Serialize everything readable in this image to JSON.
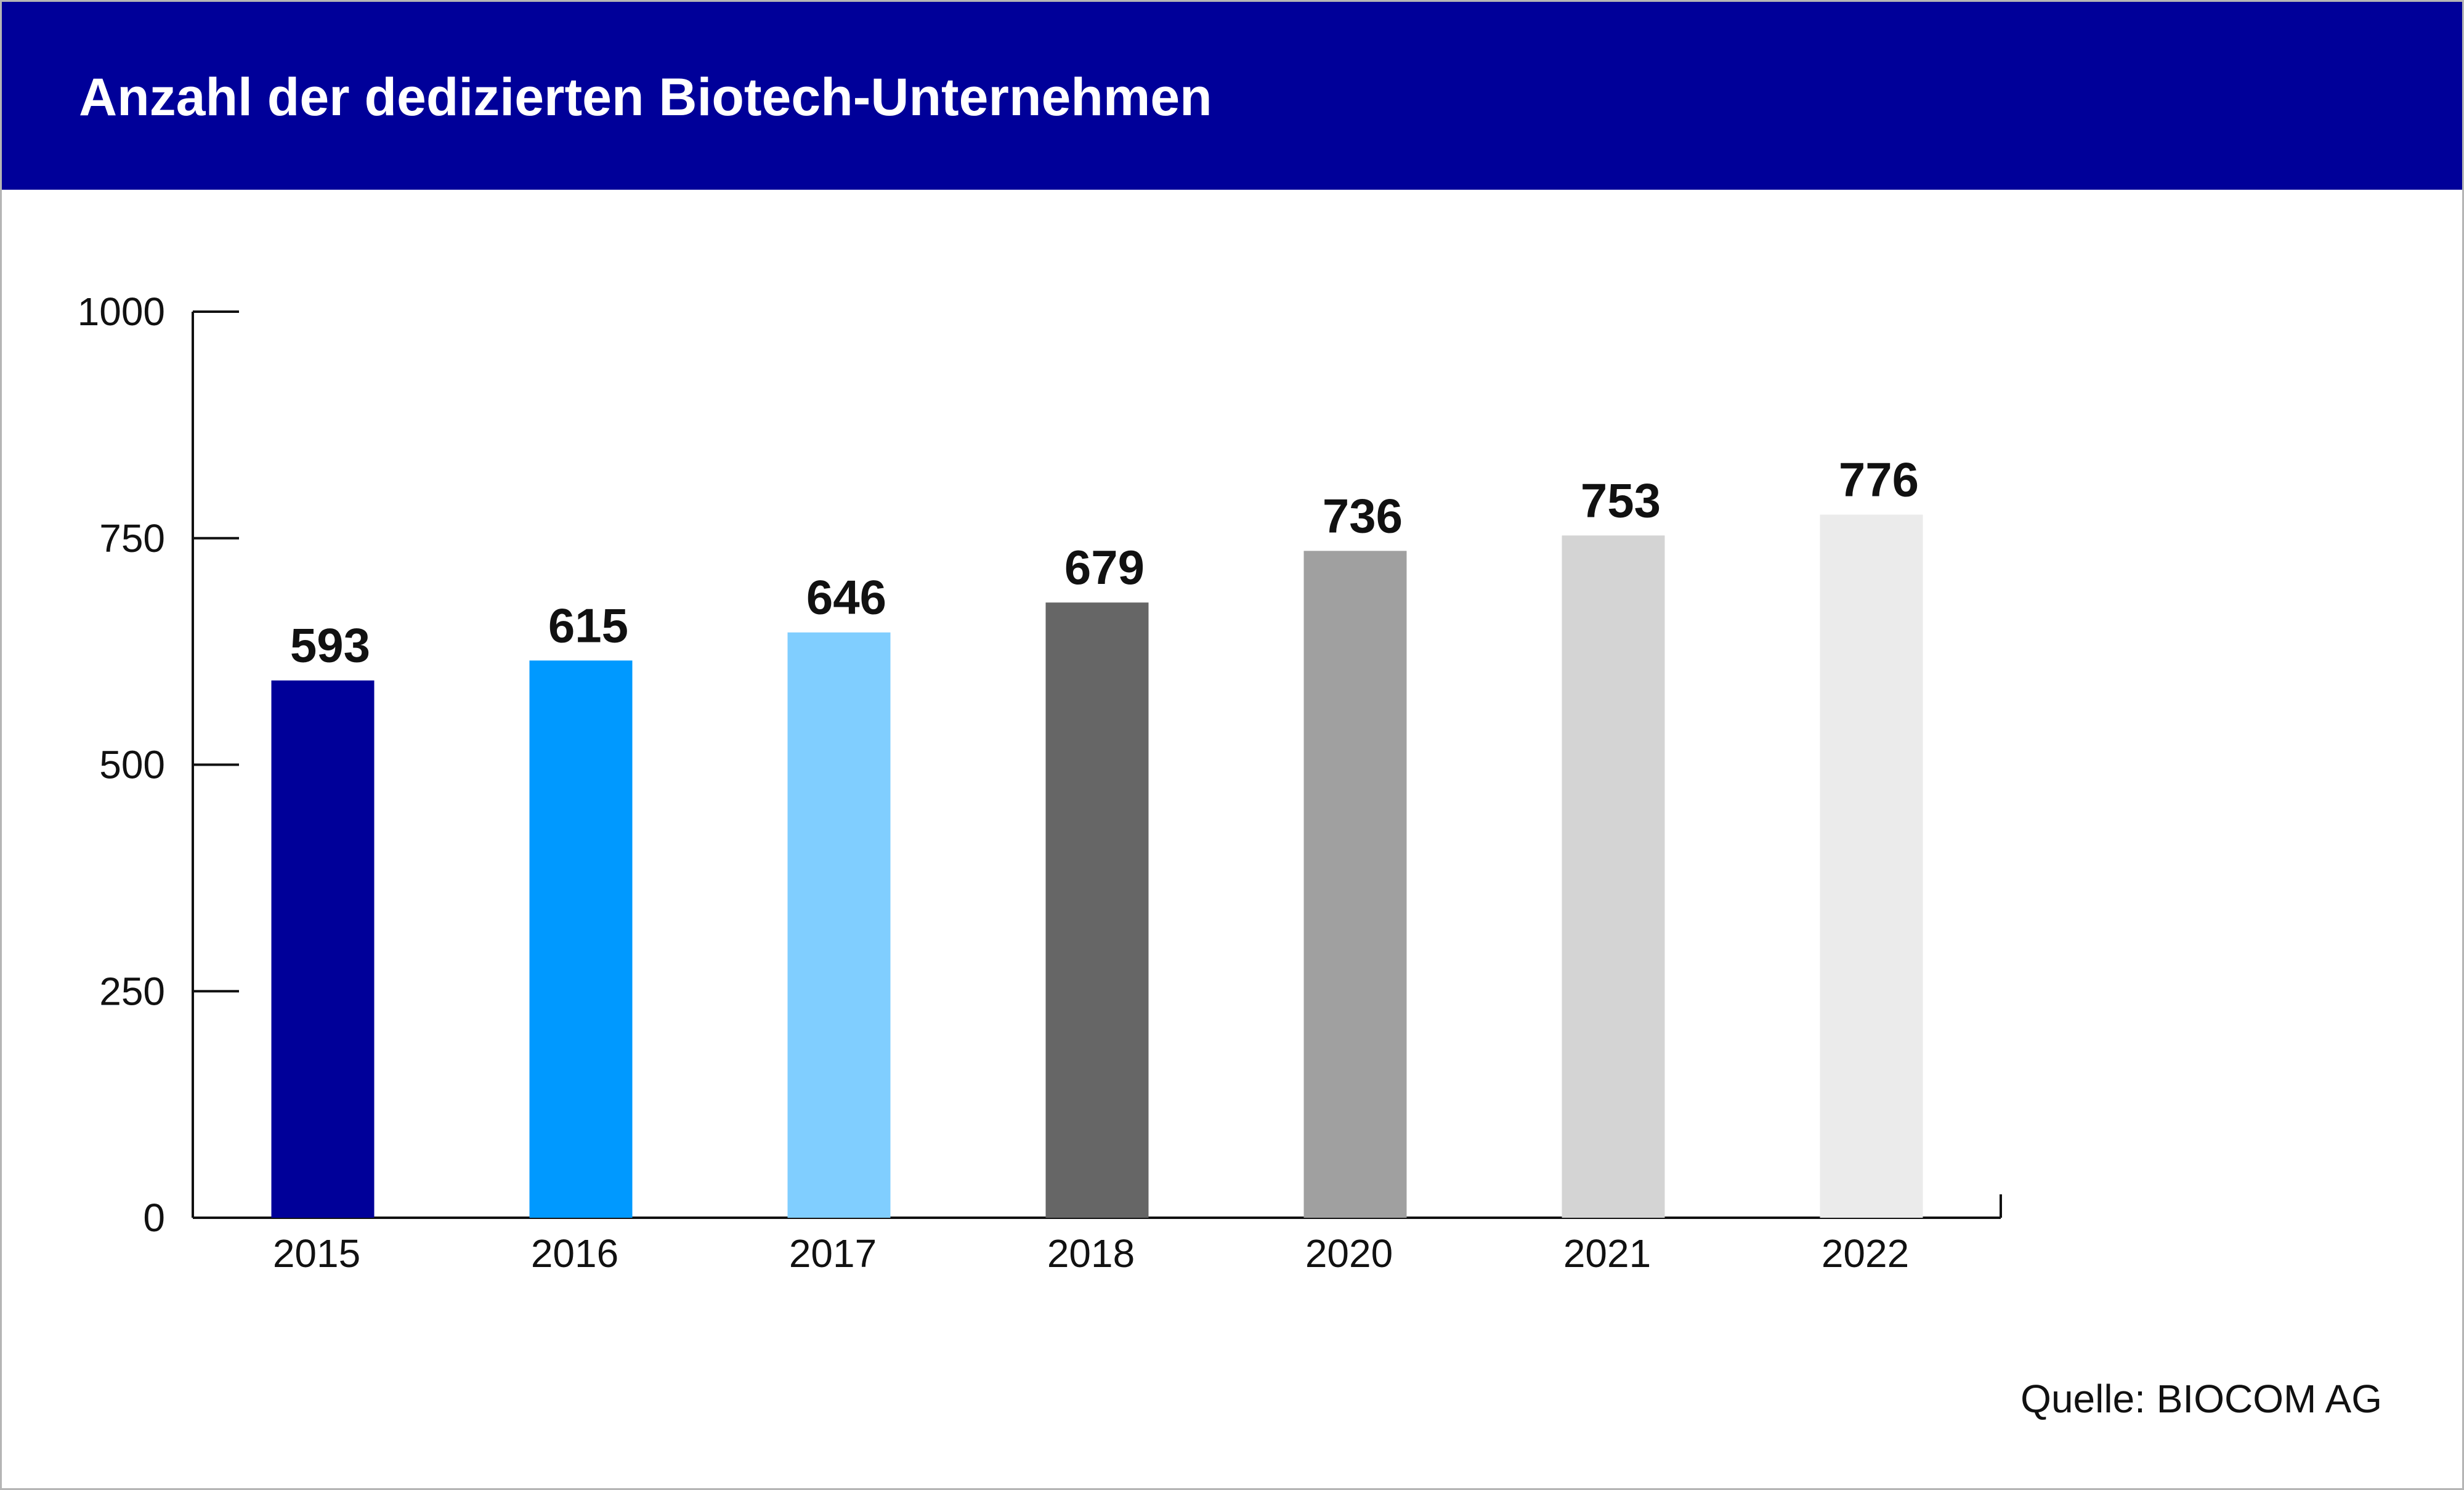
{
  "chart_data": {
    "type": "bar",
    "title": "Anzahl der dedizierten Biotech-Unternehmen",
    "categories": [
      "2015",
      "2016",
      "2017",
      "2018",
      "2020",
      "2021",
      "2022"
    ],
    "values": [
      593,
      615,
      646,
      679,
      736,
      753,
      776
    ],
    "data_labels": [
      "593",
      "615",
      "646",
      "679",
      "736",
      "753",
      "776"
    ],
    "bar_colors": [
      "#000099",
      "#0099ff",
      "#80ceff",
      "#666666",
      "#a0a0a0",
      "#d4d4d4",
      "#ebebeb"
    ],
    "yticks": [
      0,
      250,
      500,
      750,
      1000
    ],
    "ytick_labels": [
      "0",
      "250",
      "500",
      "750",
      "1000"
    ],
    "ylim": [
      0,
      1000
    ],
    "xlabel": "",
    "ylabel": "",
    "grid": false,
    "legend": "none",
    "source": "Quelle: BIOCOM AG"
  },
  "colors": {
    "header_background": "#000099",
    "header_text": "#ffffff",
    "axis": "#111111",
    "frame_border": "#b5b5b5"
  }
}
